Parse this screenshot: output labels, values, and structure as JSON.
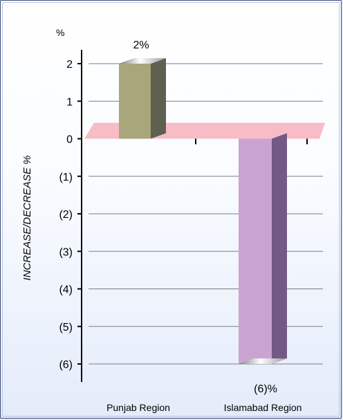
{
  "chart_data": {
    "type": "bar",
    "categories": [
      "Punjab Region",
      "Islamabad Region"
    ],
    "values": [
      2,
      -6
    ],
    "data_labels": [
      "2%",
      "(6)%"
    ],
    "ylabel": "INCREASE/DECREASE %",
    "y_unit": "%",
    "ylim": [
      -6,
      2
    ],
    "yticks": [
      {
        "value": 2,
        "label": "2"
      },
      {
        "value": 1,
        "label": "1"
      },
      {
        "value": 0,
        "label": "0"
      },
      {
        "value": -1,
        "label": "(1)"
      },
      {
        "value": -2,
        "label": "(2)"
      },
      {
        "value": -3,
        "label": "(3)"
      },
      {
        "value": -4,
        "label": "(4)"
      },
      {
        "value": -5,
        "label": "(5)"
      },
      {
        "value": -6,
        "label": "(6)"
      }
    ],
    "grid": true,
    "colors": {
      "bar1_front": "#a8a67a",
      "bar1_side": "#5e6050",
      "bar2_front": "#c9a4d0",
      "bar2_side": "#735a86",
      "zero_plane": "#f7bcc6",
      "gridline": "#7d7d7d"
    }
  }
}
